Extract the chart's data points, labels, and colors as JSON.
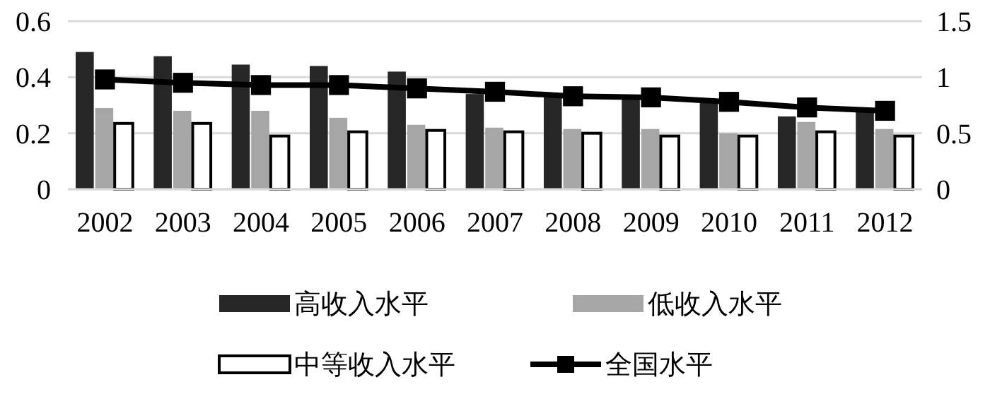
{
  "chart_data": {
    "type": "bar",
    "categories": [
      "2002",
      "2003",
      "2004",
      "2005",
      "2006",
      "2007",
      "2008",
      "2009",
      "2010",
      "2011",
      "2012"
    ],
    "series": [
      {
        "name": "高收入水平",
        "color": "#262626",
        "values": [
          0.49,
          0.475,
          0.445,
          0.44,
          0.42,
          0.34,
          0.335,
          0.33,
          0.31,
          0.26,
          0.29
        ]
      },
      {
        "name": "低收入水平",
        "color": "#a6a6a6",
        "values": [
          0.29,
          0.28,
          0.28,
          0.255,
          0.23,
          0.22,
          0.215,
          0.215,
          0.2,
          0.24,
          0.215
        ]
      },
      {
        "name": "中等收入水平",
        "color": "#ffffff",
        "values": [
          0.235,
          0.235,
          0.19,
          0.205,
          0.21,
          0.205,
          0.2,
          0.19,
          0.19,
          0.205,
          0.19
        ]
      },
      {
        "name": "全国水平",
        "color": "#000000",
        "type": "line",
        "axis": "y2",
        "marker": "square",
        "values": [
          0.98,
          0.95,
          0.93,
          0.93,
          0.9,
          0.87,
          0.83,
          0.82,
          0.78,
          0.73,
          0.7
        ]
      }
    ],
    "ylim": [
      0,
      0.6
    ],
    "yticks": [
      0,
      0.2,
      0.4,
      0.6
    ],
    "y2lim": [
      0,
      1.5
    ],
    "y2ticks": [
      0,
      0.5,
      1,
      1.5
    ],
    "grid": "y",
    "legend": "bottom"
  }
}
